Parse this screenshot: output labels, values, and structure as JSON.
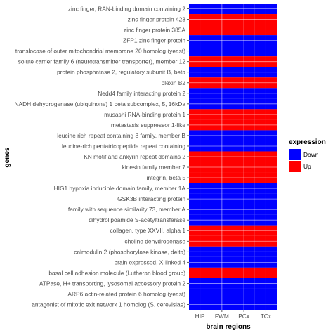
{
  "chart_data": {
    "type": "heatmap",
    "title": "",
    "xlabel": "brain regions",
    "ylabel": "genes",
    "x_categories": [
      "HIP",
      "FWM",
      "PCx",
      "TCx"
    ],
    "y_categories": [
      "zinc finger, RAN-binding domain containing 2",
      "zinc finger protein 423",
      "zinc finger protein 385A",
      "ZFP1 zinc finger protein",
      "translocase of outer mitochondrial membrane 20 homolog (yeast)",
      "solute carrier family 6 (neurotransmitter transporter), member 12",
      "protein phosphatase 2, regulatory subunit B, beta",
      "plexin B2",
      "Nedd4 family interacting protein 2",
      "NADH dehydrogenase (ubiquinone) 1 beta subcomplex, 5, 16kDa",
      "musashi RNA-binding protein 1",
      "metastasis suppressor 1-like",
      "leucine rich repeat containing 8 family, member B",
      "leucine-rich pentatricopeptide repeat containing",
      "KN motif and ankyrin repeat domains 2",
      "kinesin family member 7",
      "integrin, beta 5",
      "HIG1 hypoxia inducible domain family, member 1A",
      "GSK3B interacting protein",
      "family with sequence similarity 73, member A",
      "dihydrolipoamide S-acetyltransferase",
      "collagen, type XXVII, alpha 1",
      "choline dehydrogenase",
      "calmodulin 2 (phosphorylase kinase, delta)",
      "brain expressed, X-linked 4",
      "basal cell adhesion molecule (Lutheran blood group)",
      "ATPase, H+ transporting, lysosomal accessory protein 2",
      "ARP6 actin-related protein 6 homolog (yeast)",
      "antagonist of mitotic exit network 1 homolog (S. cerevisiae)"
    ],
    "values": [
      [
        "Down",
        "Down",
        "Down",
        "Down"
      ],
      [
        "Up",
        "Up",
        "Up",
        "Up"
      ],
      [
        "Up",
        "Up",
        "Up",
        "Up"
      ],
      [
        "Down",
        "Down",
        "Down",
        "Down"
      ],
      [
        "Down",
        "Down",
        "Down",
        "Down"
      ],
      [
        "Up",
        "Up",
        "Up",
        "Up"
      ],
      [
        "Down",
        "Down",
        "Down",
        "Down"
      ],
      [
        "Up",
        "Up",
        "Up",
        "Up"
      ],
      [
        "Down",
        "Down",
        "Down",
        "Down"
      ],
      [
        "Down",
        "Down",
        "Down",
        "Down"
      ],
      [
        "Up",
        "Up",
        "Up",
        "Up"
      ],
      [
        "Up",
        "Up",
        "Up",
        "Up"
      ],
      [
        "Down",
        "Down",
        "Down",
        "Down"
      ],
      [
        "Down",
        "Down",
        "Down",
        "Down"
      ],
      [
        "Up",
        "Up",
        "Up",
        "Up"
      ],
      [
        "Up",
        "Up",
        "Up",
        "Up"
      ],
      [
        "Up",
        "Up",
        "Up",
        "Up"
      ],
      [
        "Down",
        "Down",
        "Down",
        "Down"
      ],
      [
        "Down",
        "Down",
        "Down",
        "Down"
      ],
      [
        "Down",
        "Down",
        "Down",
        "Down"
      ],
      [
        "Down",
        "Down",
        "Down",
        "Down"
      ],
      [
        "Up",
        "Up",
        "Up",
        "Up"
      ],
      [
        "Up",
        "Up",
        "Up",
        "Up"
      ],
      [
        "Down",
        "Down",
        "Down",
        "Down"
      ],
      [
        "Down",
        "Down",
        "Down",
        "Down"
      ],
      [
        "Up",
        "Up",
        "Up",
        "Up"
      ],
      [
        "Down",
        "Down",
        "Down",
        "Down"
      ],
      [
        "Down",
        "Down",
        "Down",
        "Down"
      ],
      [
        "Down",
        "Down",
        "Down",
        "Down"
      ]
    ],
    "legend": {
      "title": "expression",
      "placement": "right",
      "entries": [
        {
          "label": "Down",
          "color": "#0000ff"
        },
        {
          "label": "Up",
          "color": "#ff0000"
        }
      ]
    },
    "colors": {
      "Down": "#0000ff",
      "Up": "#ff0000",
      "panel_background": "#ebebeb",
      "grid": "#ffffff"
    }
  }
}
